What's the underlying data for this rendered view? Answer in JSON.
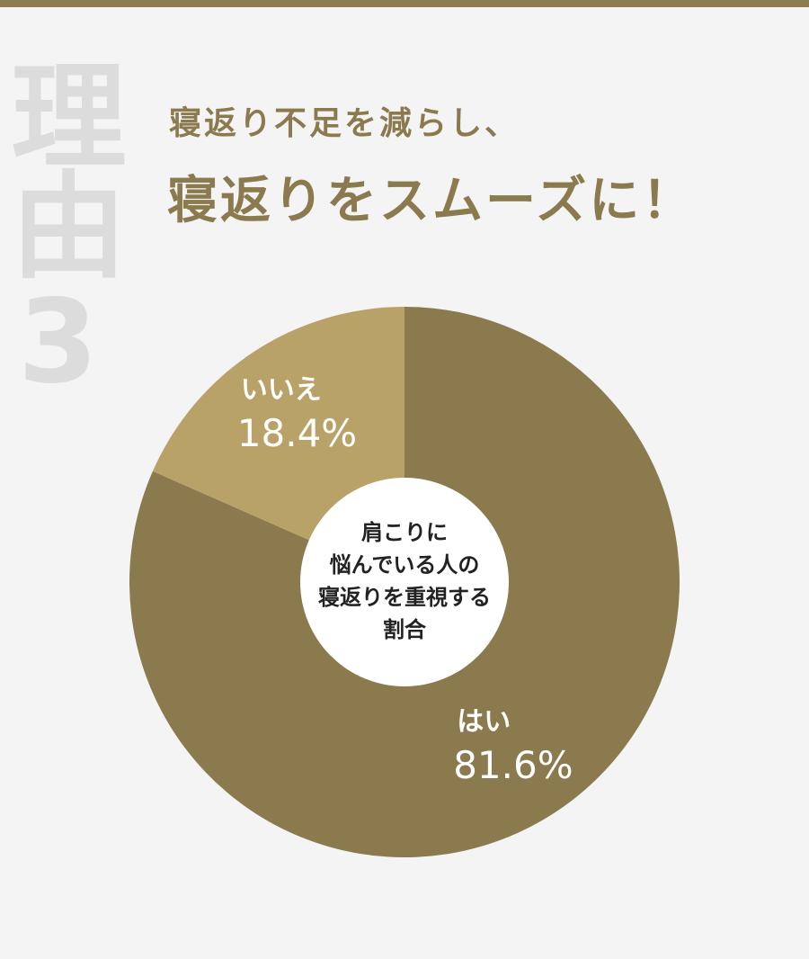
{
  "badge": "理由3",
  "chart_data": {
    "type": "donut",
    "subtitle": "寝返り不足を減らし、",
    "title": "寝返りをスムーズに！",
    "categories": [
      "はい",
      "いいえ"
    ],
    "values": [
      81.6,
      18.4
    ],
    "value_labels": [
      "81.6%",
      "18.4%"
    ],
    "colors": [
      "#8a7a4e",
      "#b8a268"
    ],
    "center_label": [
      "肩こりに",
      "悩んでいる人の",
      "寝返りを重視する",
      "割合"
    ]
  }
}
